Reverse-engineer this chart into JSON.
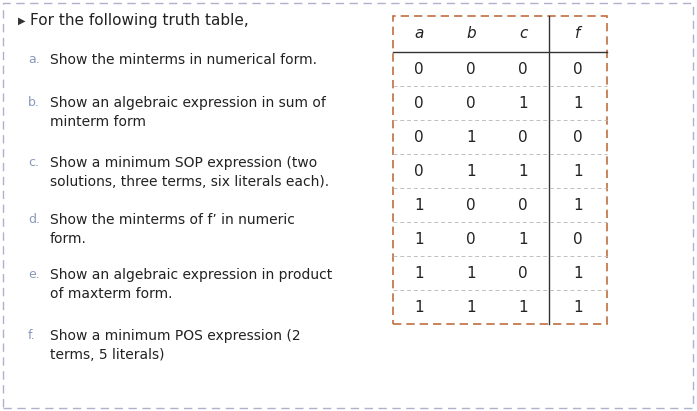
{
  "background_color": "#ffffff",
  "bullet_text": "For the following truth table,",
  "items": [
    {
      "label": "a.",
      "text": "Show the minterms in numerical form.",
      "lines": 1
    },
    {
      "label": "b.",
      "text": "Show an algebraic expression in sum of\nminterm form",
      "lines": 2
    },
    {
      "label": "c.",
      "text": "Show a minimum SOP expression (two\nsolutions, three terms, six literals each).",
      "lines": 2
    },
    {
      "label": "d.",
      "text": "Show the minterms of f’ in numeric\nform.",
      "lines": 2
    },
    {
      "label": "e.",
      "text": "Show an algebraic expression in product\nof maxterm form.",
      "lines": 2
    },
    {
      "label": "f.",
      "text": "Show a minimum POS expression (2\nterms, 5 literals)",
      "lines": 2
    }
  ],
  "table_headers": [
    "a",
    "b",
    "c",
    "f"
  ],
  "table_data": [
    [
      "0",
      "0",
      "0",
      "0"
    ],
    [
      "0",
      "0",
      "1",
      "1"
    ],
    [
      "0",
      "1",
      "0",
      "0"
    ],
    [
      "0",
      "1",
      "1",
      "1"
    ],
    [
      "1",
      "0",
      "0",
      "1"
    ],
    [
      "1",
      "0",
      "1",
      "0"
    ],
    [
      "1",
      "1",
      "0",
      "1"
    ],
    [
      "1",
      "1",
      "1",
      "1"
    ]
  ],
  "outer_border_color": "#b0b0cc",
  "table_outer_color": "#c07040",
  "table_sep_color": "#333333",
  "table_row_line_color": "#c0c0c0",
  "text_color_dark": "#222222",
  "label_color": "#8899bb",
  "bullet_color": "#333333",
  "title_fontsize": 11,
  "label_fontsize": 9,
  "body_fontsize": 10,
  "table_header_fontsize": 11,
  "table_body_fontsize": 11
}
